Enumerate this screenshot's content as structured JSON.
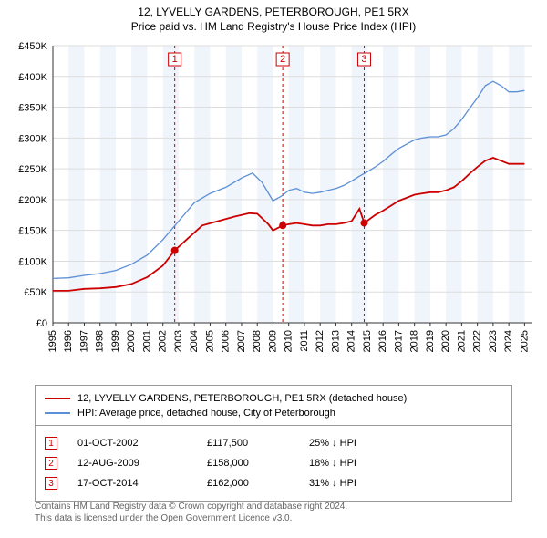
{
  "title_line1": "12, LYVELLY GARDENS, PETERBOROUGH, PE1 5RX",
  "title_line2": "Price paid vs. HM Land Registry's House Price Index (HPI)",
  "chart": {
    "type": "line",
    "background_color": "#ffffff",
    "alt_band_color": "#f0f4fb",
    "grid_color": "#dddddd",
    "axis_color": "#333333",
    "x_range": [
      1995,
      2025.5
    ],
    "y_range": [
      0,
      450000
    ],
    "y_ticks": [
      0,
      50000,
      100000,
      150000,
      200000,
      250000,
      300000,
      350000,
      400000,
      450000
    ],
    "y_tick_labels": [
      "£0",
      "£50K",
      "£100K",
      "£150K",
      "£200K",
      "£250K",
      "£300K",
      "£350K",
      "£400K",
      "£450K"
    ],
    "x_ticks": [
      1995,
      1996,
      1997,
      1998,
      1999,
      2000,
      2001,
      2002,
      2003,
      2004,
      2005,
      2006,
      2007,
      2008,
      2009,
      2010,
      2011,
      2012,
      2013,
      2014,
      2015,
      2016,
      2017,
      2018,
      2019,
      2020,
      2021,
      2022,
      2023,
      2024,
      2025
    ],
    "alt_bands": [
      [
        1996,
        1997
      ],
      [
        1998,
        1999
      ],
      [
        2000,
        2001
      ],
      [
        2002,
        2003
      ],
      [
        2004,
        2005
      ],
      [
        2006,
        2007
      ],
      [
        2008,
        2009
      ],
      [
        2010,
        2011
      ],
      [
        2012,
        2013
      ],
      [
        2014,
        2015
      ],
      [
        2016,
        2017
      ],
      [
        2018,
        2019
      ],
      [
        2020,
        2021
      ],
      [
        2022,
        2023
      ],
      [
        2024,
        2025
      ]
    ],
    "series": [
      {
        "name": "price_paid",
        "color": "#cc0000",
        "width": 1.8,
        "points": [
          [
            1995.0,
            52000
          ],
          [
            1996.0,
            52000
          ],
          [
            1997.0,
            55000
          ],
          [
            1998.0,
            56000
          ],
          [
            1999.0,
            58000
          ],
          [
            2000.0,
            63000
          ],
          [
            2001.0,
            74000
          ],
          [
            2002.0,
            93000
          ],
          [
            2002.75,
            117500
          ],
          [
            2003.5,
            135000
          ],
          [
            2004.5,
            158000
          ],
          [
            2005.5,
            165000
          ],
          [
            2006.5,
            172000
          ],
          [
            2007.5,
            178000
          ],
          [
            2008.0,
            177000
          ],
          [
            2008.7,
            160000
          ],
          [
            2009.0,
            150000
          ],
          [
            2009.62,
            158000
          ],
          [
            2010.0,
            160000
          ],
          [
            2010.5,
            162000
          ],
          [
            2011.0,
            160000
          ],
          [
            2011.5,
            158000
          ],
          [
            2012.0,
            158000
          ],
          [
            2012.5,
            160000
          ],
          [
            2013.0,
            160000
          ],
          [
            2013.5,
            162000
          ],
          [
            2014.0,
            165000
          ],
          [
            2014.5,
            185000
          ],
          [
            2014.8,
            162000
          ],
          [
            2015.5,
            175000
          ],
          [
            2016.0,
            182000
          ],
          [
            2016.5,
            190000
          ],
          [
            2017.0,
            198000
          ],
          [
            2017.5,
            203000
          ],
          [
            2018.0,
            208000
          ],
          [
            2018.5,
            210000
          ],
          [
            2019.0,
            212000
          ],
          [
            2019.5,
            212000
          ],
          [
            2020.0,
            215000
          ],
          [
            2020.5,
            220000
          ],
          [
            2021.0,
            230000
          ],
          [
            2021.5,
            242000
          ],
          [
            2022.0,
            253000
          ],
          [
            2022.5,
            263000
          ],
          [
            2023.0,
            268000
          ],
          [
            2023.5,
            263000
          ],
          [
            2024.0,
            258000
          ],
          [
            2024.5,
            258000
          ],
          [
            2025.0,
            258000
          ]
        ]
      },
      {
        "name": "hpi",
        "color": "#5b8fd6",
        "width": 1.3,
        "points": [
          [
            1995.0,
            72000
          ],
          [
            1996.0,
            73000
          ],
          [
            1997.0,
            77000
          ],
          [
            1998.0,
            80000
          ],
          [
            1999.0,
            85000
          ],
          [
            2000.0,
            95000
          ],
          [
            2001.0,
            110000
          ],
          [
            2002.0,
            135000
          ],
          [
            2003.0,
            165000
          ],
          [
            2004.0,
            195000
          ],
          [
            2005.0,
            210000
          ],
          [
            2006.0,
            220000
          ],
          [
            2007.0,
            235000
          ],
          [
            2007.7,
            243000
          ],
          [
            2008.3,
            228000
          ],
          [
            2009.0,
            198000
          ],
          [
            2009.5,
            205000
          ],
          [
            2010.0,
            215000
          ],
          [
            2010.5,
            218000
          ],
          [
            2011.0,
            212000
          ],
          [
            2011.5,
            210000
          ],
          [
            2012.0,
            212000
          ],
          [
            2012.5,
            215000
          ],
          [
            2013.0,
            218000
          ],
          [
            2013.5,
            223000
          ],
          [
            2014.0,
            230000
          ],
          [
            2014.5,
            238000
          ],
          [
            2015.0,
            245000
          ],
          [
            2015.5,
            253000
          ],
          [
            2016.0,
            262000
          ],
          [
            2016.5,
            273000
          ],
          [
            2017.0,
            283000
          ],
          [
            2017.5,
            290000
          ],
          [
            2018.0,
            297000
          ],
          [
            2018.5,
            300000
          ],
          [
            2019.0,
            302000
          ],
          [
            2019.5,
            302000
          ],
          [
            2020.0,
            305000
          ],
          [
            2020.5,
            315000
          ],
          [
            2021.0,
            330000
          ],
          [
            2021.5,
            348000
          ],
          [
            2022.0,
            365000
          ],
          [
            2022.5,
            385000
          ],
          [
            2023.0,
            392000
          ],
          [
            2023.5,
            385000
          ],
          [
            2024.0,
            375000
          ],
          [
            2024.5,
            375000
          ],
          [
            2025.0,
            377000
          ]
        ]
      }
    ],
    "sale_markers": [
      {
        "num": "1",
        "x": 2002.75,
        "y": 117500,
        "vline_color": "#cc0000",
        "vline_dash": "3,3"
      },
      {
        "num": "2",
        "x": 2009.62,
        "y": 158000,
        "vline_color": "#cc0000",
        "vline_dash": "3,3"
      },
      {
        "num": "3",
        "x": 2014.8,
        "y": 162000,
        "vline_color": "#cc0000",
        "vline_dash": "3,3"
      }
    ],
    "marker_dot_radius": 4,
    "marker_dot_color": "#cc0000",
    "marker_box_size": 14
  },
  "legend": {
    "items": [
      {
        "color": "#cc0000",
        "label": "12, LYVELLY GARDENS, PETERBOROUGH, PE1 5RX (detached house)"
      },
      {
        "color": "#5b8fd6",
        "label": "HPI: Average price, detached house, City of Peterborough"
      }
    ]
  },
  "sales": {
    "rows": [
      {
        "num": "1",
        "date": "01-OCT-2002",
        "price": "£117,500",
        "diff": "25% ↓ HPI"
      },
      {
        "num": "2",
        "date": "12-AUG-2009",
        "price": "£158,000",
        "diff": "18% ↓ HPI"
      },
      {
        "num": "3",
        "date": "17-OCT-2014",
        "price": "£162,000",
        "diff": "31% ↓ HPI"
      }
    ]
  },
  "footer": {
    "line1": "Contains HM Land Registry data © Crown copyright and database right 2024.",
    "line2": "This data is licensed under the Open Government Licence v3.0."
  }
}
